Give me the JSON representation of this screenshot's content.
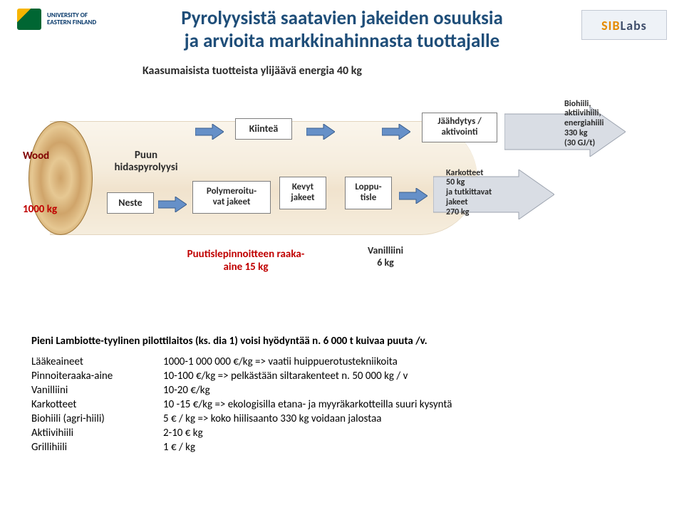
{
  "logos": {
    "left_text": "UNIVERSITY OF\nEASTERN FINLAND",
    "right_text_a": "SIB",
    "right_text_b": "Labs"
  },
  "heading": {
    "line1": "Pyrolyysistä saatavien jakeiden osuuksia",
    "line2": "ja arvioita markkinahinnasta tuottajalle"
  },
  "subtitle": "Kaasumaisista tuotteista ylijäävä energia 40 kg",
  "diagram": {
    "wood_name": "Wood",
    "wood_weight": "1000 kg",
    "hidaspyro": "Puun\nhidaspyrolyysi",
    "neste": "Neste",
    "kiintea": "Kiinteä",
    "polymer": "Polymeroitu-\nvat jakeet",
    "kevyt": "Kevyt\njakeet",
    "loppu": "Loppu-\ntisle",
    "jaahd": "Jäähdytys /\naktivointi",
    "kark": "Karkotteet\n50 kg\nja tutkittavat\njakeet\n270 kg",
    "biohiili": "Biohiili,\naktiivihiili,\nenergiahiili\n330 kg\n(30 GJ/t)",
    "raaka": "Puutislepinnoitteen raaka-\naine 15 kg",
    "vanilliini": "Vanilliini\n6 kg",
    "arrow_fill": "#6690c8",
    "arrow_stroke": "#3b5e8c",
    "big_arrow_fill": "#d9dde4",
    "big_arrow_stroke": "#9ca3af"
  },
  "footer": {
    "lead": "Pieni Lambiotte-tyylinen pilottilaitos (ks. dia 1) voisi hyödyntää n. 6 000 t kuivaa puuta /v.",
    "rows": [
      {
        "name": "Lääkeaineet",
        "val": "1000-1 000 000 €/kg => vaatii huippuerotustekniikoita"
      },
      {
        "name": "Pinnoiteraaka-aine",
        "val": "10-100 €/kg   => pelkästään siltarakenteet n. 50 000 kg / v"
      },
      {
        "name": "Vanilliini",
        "val": "10-20 €/kg"
      },
      {
        "name": "Karkotteet",
        "val": "10 -15 €/kg  => ekologisilla etana- ja myyräkarkotteilla suuri kysyntä"
      },
      {
        "name": "Biohiili (agri-hiili)",
        "val": "5 € / kg      => koko hiilisaanto 330 kg voidaan jalostaa"
      },
      {
        "name": "Aktiivihiili",
        "val": "2-10 € kg"
      },
      {
        "name": "Grillihiili",
        "val": "1 € / kg"
      }
    ]
  }
}
